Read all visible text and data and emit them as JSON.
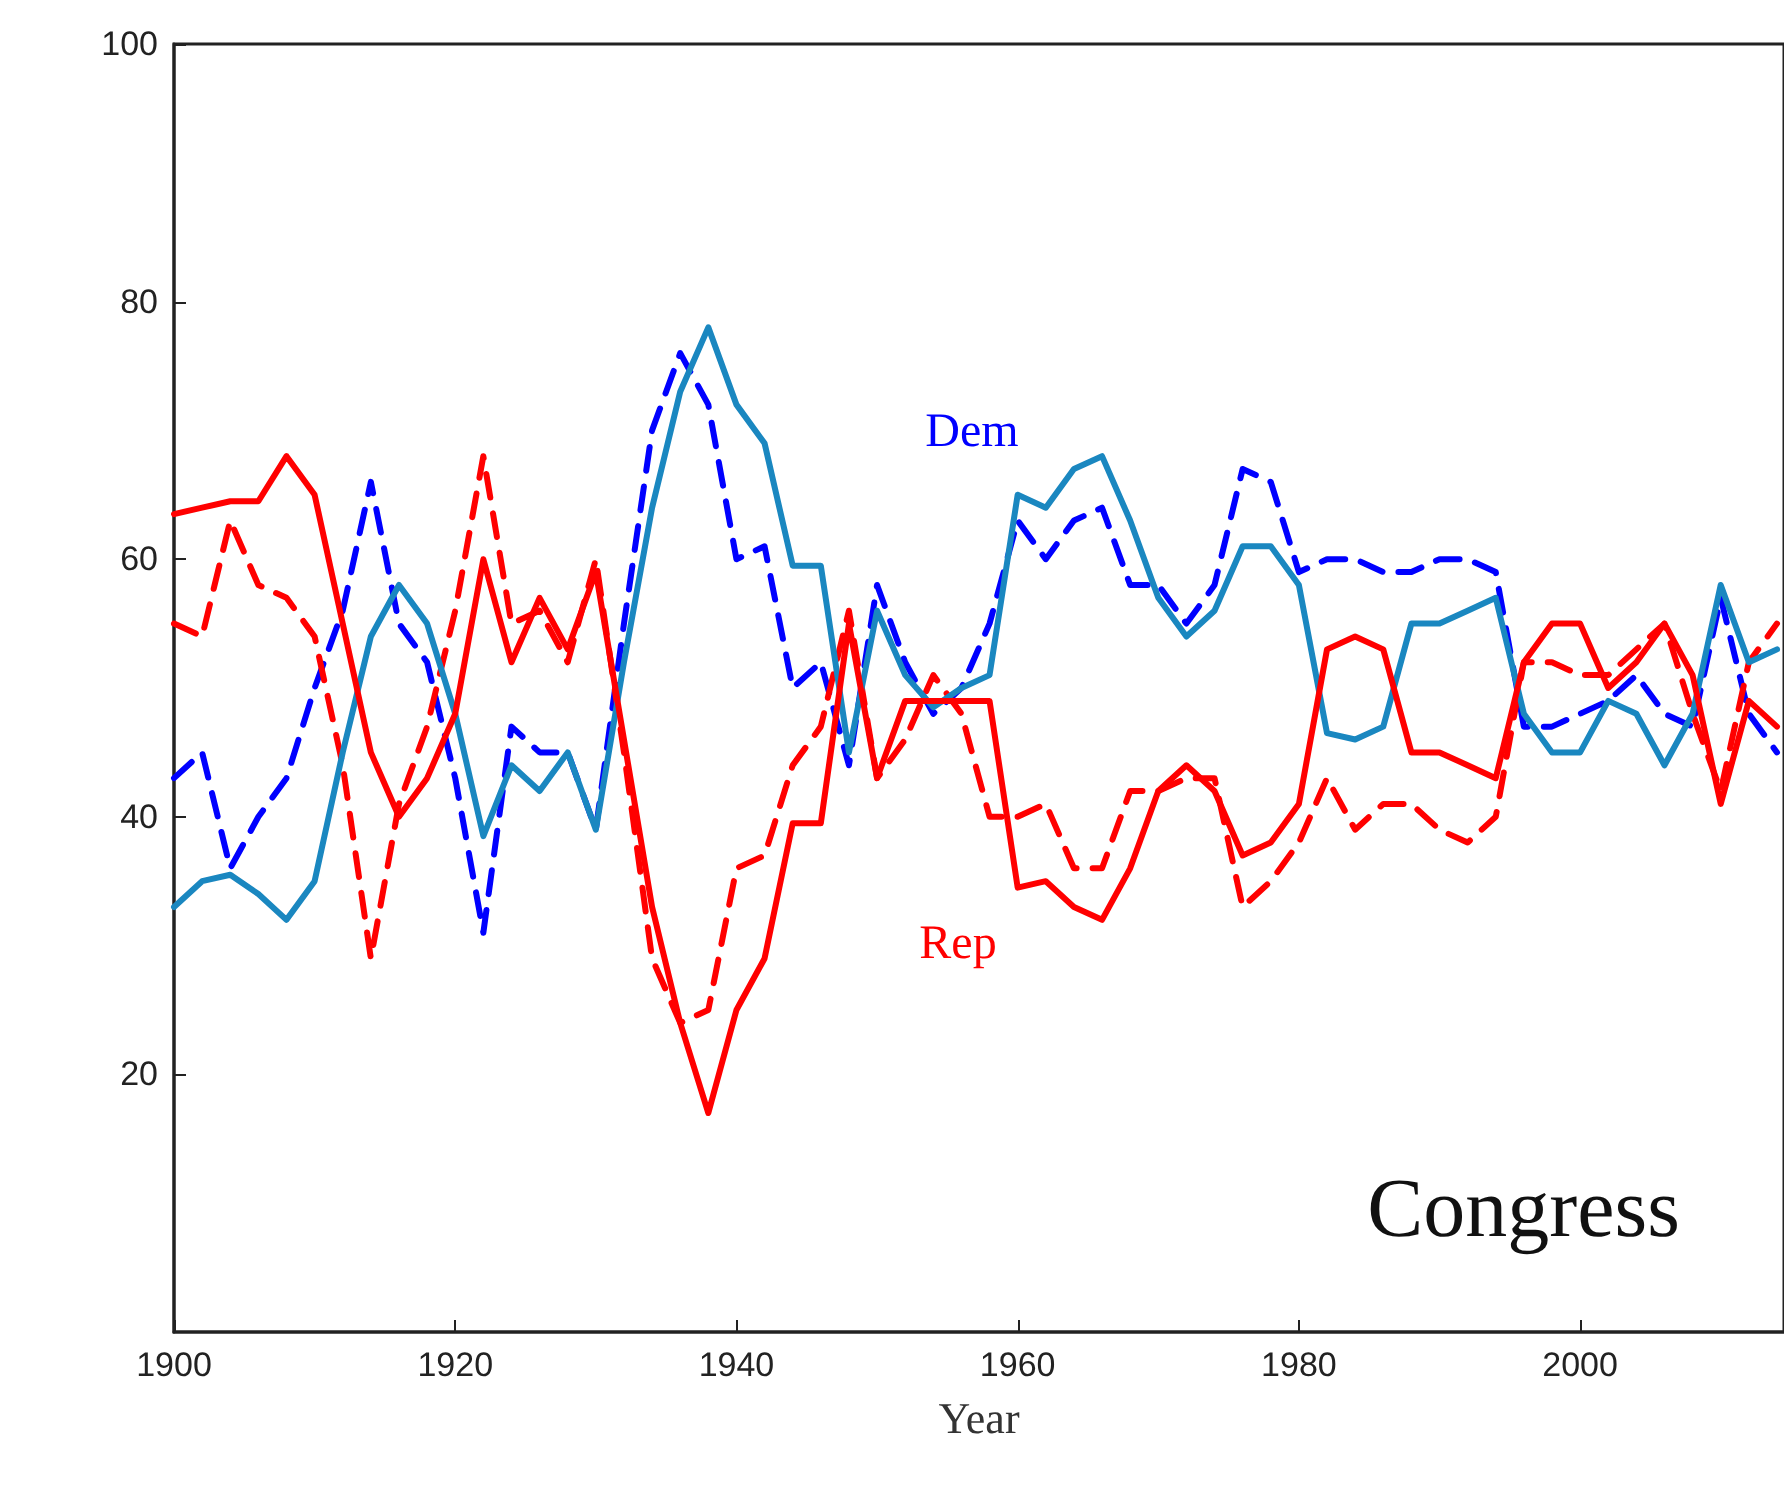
{
  "chart_data": {
    "type": "line",
    "xlabel": "Year",
    "annotations": [
      "Congress"
    ],
    "xlim": [
      1900,
      2014.5
    ],
    "xticks": [
      1900,
      1920,
      1940,
      1960,
      1980,
      2000
    ],
    "ylim": [
      0,
      100
    ],
    "yticks": [
      20,
      40,
      60,
      80,
      100
    ],
    "grid": false,
    "marker": "none",
    "x": [
      1900,
      1902,
      1904,
      1906,
      1908,
      1910,
      1912,
      1914,
      1916,
      1918,
      1920,
      1922,
      1924,
      1926,
      1928,
      1930,
      1932,
      1934,
      1936,
      1938,
      1940,
      1942,
      1944,
      1946,
      1948,
      1950,
      1952,
      1954,
      1956,
      1958,
      1960,
      1962,
      1964,
      1966,
      1968,
      1970,
      1972,
      1974,
      1976,
      1978,
      1980,
      1982,
      1984,
      1986,
      1988,
      1990,
      1992,
      1994,
      1996,
      1998,
      2000,
      2002,
      2004,
      2006,
      2008,
      2010,
      2012,
      2014
    ],
    "series": [
      {
        "name": "Dem",
        "color": "#0000ff",
        "line_style": "dashed",
        "values": [
          43,
          45,
          36,
          40,
          43,
          50,
          56,
          66,
          55,
          52,
          43,
          31,
          47,
          45,
          45,
          39,
          55,
          70,
          76,
          72,
          60,
          61,
          50,
          52,
          44,
          58,
          52,
          48,
          50,
          55,
          63,
          60,
          63,
          64,
          58,
          58,
          55,
          58,
          67,
          66,
          59,
          60,
          60,
          59,
          59,
          60,
          60,
          59,
          47,
          47,
          48,
          49,
          51,
          48,
          47,
          57,
          48,
          45
        ]
      },
      {
        "name": "Rep",
        "color": "#ff0000",
        "line_style": "dashed",
        "values": [
          55,
          54,
          63,
          58,
          57,
          54,
          44,
          29,
          41,
          47,
          56,
          68,
          55,
          56,
          52,
          60,
          45,
          29,
          24,
          25,
          36,
          37,
          44,
          47,
          56,
          43,
          46,
          51,
          48,
          40,
          40,
          41,
          36,
          36,
          42,
          42,
          43,
          43,
          33,
          35,
          38,
          43,
          39,
          41,
          41,
          39,
          38,
          40,
          52,
          52,
          51,
          51,
          53,
          55,
          48,
          42,
          52,
          55
        ]
      },
      {
        "color": "#1a87c0",
        "line_style": "solid",
        "values": [
          33,
          35,
          35.5,
          34,
          32,
          35,
          45,
          54,
          58,
          55,
          48,
          38.5,
          44,
          42,
          45,
          39,
          52,
          64,
          73,
          78,
          72,
          69,
          59.5,
          59.5,
          45,
          56,
          51,
          48.5,
          50,
          51,
          65,
          64,
          67,
          68,
          63,
          57,
          54,
          56,
          61,
          61,
          58,
          46.5,
          46,
          47,
          55,
          55,
          56,
          57,
          48,
          45,
          45,
          49,
          48,
          44,
          48,
          58,
          52,
          53
        ]
      },
      {
        "color": "#ff0000",
        "line_style": "solid",
        "values": [
          63.5,
          64,
          64.5,
          64.5,
          68,
          65,
          55,
          45,
          40,
          43,
          48,
          60,
          52,
          57,
          53,
          59,
          46,
          33,
          24,
          17,
          25,
          29,
          39.5,
          39.5,
          55,
          43,
          49,
          49,
          49,
          49,
          34.5,
          35,
          33,
          32,
          36,
          42,
          44,
          42,
          37,
          38,
          41,
          53,
          54,
          53,
          45,
          45,
          44,
          43,
          52,
          55,
          55,
          50,
          52,
          55,
          51,
          41,
          49,
          47
        ]
      }
    ]
  }
}
